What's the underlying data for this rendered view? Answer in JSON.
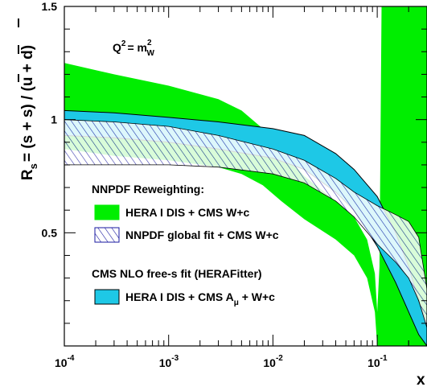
{
  "chart_data": {
    "type": "area",
    "xscale": "log",
    "xlim": [
      0.0001,
      0.3
    ],
    "ylim": [
      0.0,
      1.5
    ],
    "x_ticks": [
      {
        "value": 0.0001,
        "base": "10",
        "exp": "-4"
      },
      {
        "value": 0.001,
        "base": "10",
        "exp": "-3"
      },
      {
        "value": 0.01,
        "base": "10",
        "exp": "-2"
      },
      {
        "value": 0.1,
        "base": "10",
        "exp": "-1"
      }
    ],
    "y_ticks": [
      {
        "value": 0.5,
        "label": "0.5"
      },
      {
        "value": 1.0,
        "label": "1"
      },
      {
        "value": 1.5,
        "label": "1.5"
      }
    ],
    "xlabel": "x",
    "ylabel": "R_s = (s + s̄) / (ū + d̄)",
    "ylabel_parts": {
      "r": "R",
      "r_sub": "s",
      "rest": "= (s + s) / (u + d)"
    },
    "annotation": {
      "q": "Q",
      "q_exp": "2",
      "eq": "= m",
      "m_exp": "2",
      "m_sub": "W"
    },
    "legend": {
      "placement": "lower-left",
      "group1_title": "NNPDF Reweighting:",
      "group2_title": "CMS NLO free-s fit (HERAFitter)",
      "entries": [
        {
          "label": "HERA I DIS + CMS W+c",
          "color": "#00ee00",
          "style": "solid"
        },
        {
          "label": "NNPDF global fit + CMS W+c",
          "color": "#1a1aa0",
          "style": "hatched"
        },
        {
          "label_main": "HERA I DIS + CMS A",
          "label_sub": "μ",
          "label_tail": " + W+c",
          "color": "#1ec8e6",
          "style": "solid-outlined"
        }
      ]
    },
    "series": [
      {
        "name": "HERA I DIS + CMS W+c",
        "color": "#00ee00",
        "x": [
          0.0001,
          0.0003,
          0.001,
          0.003,
          0.005,
          0.008,
          0.012,
          0.02,
          0.04,
          0.06,
          0.08,
          0.095,
          0.1,
          0.105,
          0.11,
          0.13,
          0.15,
          0.2,
          0.3
        ],
        "upper": [
          1.25,
          1.2,
          1.15,
          1.09,
          1.04,
          0.96,
          0.86,
          0.75,
          0.64,
          0.57,
          0.47,
          0.32,
          0.15,
          0.35,
          1.5,
          1.5,
          1.5,
          1.5,
          1.5
        ],
        "lower": [
          0.87,
          0.84,
          0.82,
          0.79,
          0.76,
          0.71,
          0.64,
          0.56,
          0.47,
          0.4,
          0.3,
          0.15,
          0.0,
          0.0,
          0.0,
          0.0,
          0.0,
          0.0,
          0.0
        ]
      },
      {
        "name": "HERA I DIS + CMS A_mu + W+c",
        "color": "#1ec8e6",
        "x": [
          0.0001,
          0.0003,
          0.001,
          0.003,
          0.01,
          0.02,
          0.04,
          0.06,
          0.1,
          0.15,
          0.2,
          0.25,
          0.3
        ],
        "upper": [
          1.04,
          1.03,
          1.01,
          0.99,
          0.96,
          0.93,
          0.85,
          0.78,
          0.66,
          0.5,
          0.35,
          0.2,
          0.1
        ],
        "lower": [
          0.93,
          0.92,
          0.9,
          0.87,
          0.83,
          0.78,
          0.68,
          0.6,
          0.44,
          0.28,
          0.15,
          0.05,
          0.0
        ]
      },
      {
        "name": "NNPDF global fit + CMS W+c",
        "color": "#1a1aa0",
        "x": [
          0.0001,
          0.0003,
          0.001,
          0.003,
          0.01,
          0.02,
          0.04,
          0.06,
          0.1,
          0.15,
          0.2,
          0.25,
          0.3
        ],
        "upper": [
          1.0,
          0.99,
          0.97,
          0.93,
          0.87,
          0.82,
          0.74,
          0.68,
          0.62,
          0.58,
          0.55,
          0.48,
          0.25
        ],
        "lower": [
          0.8,
          0.8,
          0.8,
          0.79,
          0.76,
          0.72,
          0.64,
          0.57,
          0.45,
          0.37,
          0.3,
          0.2,
          0.08
        ]
      }
    ],
    "grid": false
  }
}
